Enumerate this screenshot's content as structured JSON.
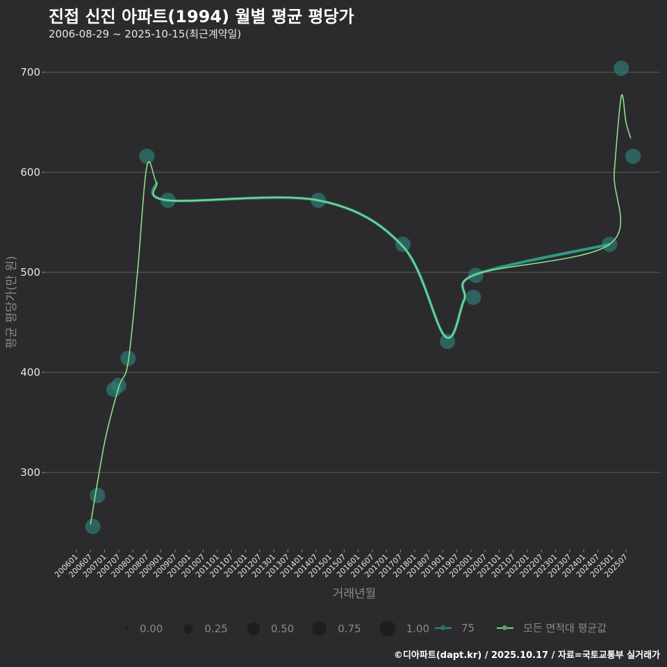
{
  "header": {
    "title": "진접 신진 아파트(1994) 월별 평균 평당가",
    "subtitle": "2006-08-29 ~ 2025-10-15(최근계약일)"
  },
  "footer": {
    "credit": "©디아파트(dapt.kr) / 2025.10.17 / 자료=국토교통부 실거래가"
  },
  "legend": {
    "size_items": [
      "0.00",
      "0.25",
      "0.50",
      "0.75",
      "1.00"
    ],
    "series_items": [
      {
        "label": "75",
        "color": "#2a8f8f"
      },
      {
        "label": "모든 면적대 평균값",
        "color": "#7fd67f"
      }
    ]
  },
  "colors": {
    "background": "#2b2b2d",
    "grid": "#555555",
    "point": "#2e7f7a",
    "line_area": "#2fae98",
    "line_avg": "#8ee08a"
  },
  "chart_data": {
    "type": "line",
    "title": "진접 신진 아파트(1994) 월별 평균 평당가",
    "subtitle": "2006-08-29 ~ 2025-10-15(최근계약일)",
    "xlabel": "거래년월",
    "ylabel": "평균 평당가(만 원)",
    "ylim": [
      220,
      715
    ],
    "yticks": [
      300,
      400,
      500,
      600,
      700
    ],
    "xticks": [
      "200601",
      "200607",
      "200701",
      "200707",
      "200801",
      "200807",
      "200901",
      "200907",
      "201001",
      "201007",
      "201101",
      "201107",
      "201201",
      "201207",
      "201301",
      "201307",
      "201401",
      "201407",
      "201501",
      "201507",
      "201601",
      "201607",
      "201701",
      "201707",
      "201801",
      "201807",
      "201901",
      "201907",
      "202001",
      "202007",
      "202101",
      "202107",
      "202201",
      "202207",
      "202301",
      "202307",
      "202401",
      "202407",
      "202501",
      "202507"
    ],
    "grid": true,
    "legend_position": "bottom",
    "series": [
      {
        "name": "75",
        "kind": "points",
        "points": [
          {
            "x": "200608",
            "y": 246,
            "size": 1.0
          },
          {
            "x": "200610",
            "y": 277,
            "size": 1.0
          },
          {
            "x": "200705",
            "y": 383,
            "size": 1.0
          },
          {
            "x": "200707",
            "y": 387,
            "size": 1.0
          },
          {
            "x": "200711",
            "y": 414,
            "size": 1.0
          },
          {
            "x": "200807",
            "y": 616,
            "size": 1.0
          },
          {
            "x": "200904",
            "y": 572,
            "size": 1.0
          },
          {
            "x": "201408",
            "y": 572,
            "size": 1.0
          },
          {
            "x": "201708",
            "y": 528,
            "size": 1.0
          },
          {
            "x": "201903",
            "y": 431,
            "size": 1.0
          },
          {
            "x": "202002",
            "y": 475,
            "size": 1.0
          },
          {
            "x": "202003",
            "y": 497,
            "size": 1.0
          },
          {
            "x": "202412",
            "y": 528,
            "size": 1.0
          },
          {
            "x": "202505",
            "y": 704,
            "size": 1.0
          },
          {
            "x": "202510",
            "y": 616,
            "size": 1.0
          }
        ]
      },
      {
        "name": "모든 면적대 평균값",
        "kind": "smoothed-line",
        "points": [
          {
            "x": "200607",
            "y": 248
          },
          {
            "x": "200701",
            "y": 330
          },
          {
            "x": "200707",
            "y": 385
          },
          {
            "x": "200711",
            "y": 410
          },
          {
            "x": "200803",
            "y": 500
          },
          {
            "x": "200807",
            "y": 606
          },
          {
            "x": "200811",
            "y": 590
          },
          {
            "x": "200904",
            "y": 572
          },
          {
            "x": "201408",
            "y": 572
          },
          {
            "x": "201708",
            "y": 526
          },
          {
            "x": "201902",
            "y": 436
          },
          {
            "x": "201910",
            "y": 472
          },
          {
            "x": "202003",
            "y": 498
          },
          {
            "x": "202412",
            "y": 528
          },
          {
            "x": "202502",
            "y": 600
          },
          {
            "x": "202505",
            "y": 676
          },
          {
            "x": "202507",
            "y": 650
          },
          {
            "x": "202509",
            "y": 634
          }
        ]
      }
    ]
  }
}
